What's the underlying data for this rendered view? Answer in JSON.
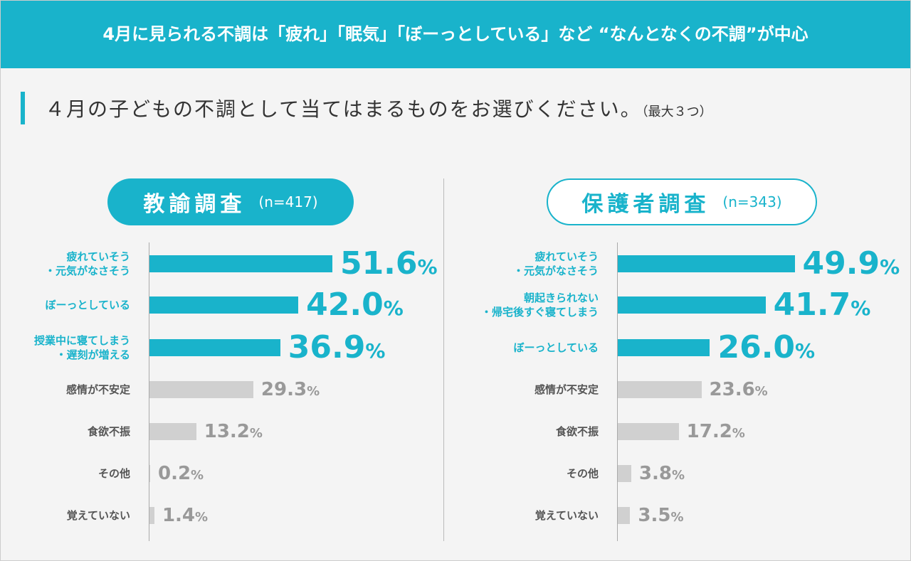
{
  "banner": "4月に見られる不調は「疲れ」「眠気」「ぼーっとしている」など “なんとなくの不調”が中心",
  "question": {
    "text": "４月の子どもの不調として当てはまるものをお選びください。",
    "note": "（最大３つ）"
  },
  "chart_data": [
    {
      "type": "bar",
      "orientation": "horizontal",
      "title": "教諭調査",
      "subtitle": "(n=417)",
      "categories": [
        "疲れていそう\n・元気がなさそう",
        "ぼーっとしている",
        "授業中に寝てしまう\n・遅刻が増える",
        "感情が不安定",
        "食欲不振",
        "その他",
        "覚えていない"
      ],
      "values": [
        51.6,
        42.0,
        36.9,
        29.3,
        13.2,
        0.2,
        1.4
      ],
      "value_labels": [
        "51.6%",
        "42.0%",
        "36.9%",
        "29.3%",
        "13.2%",
        "0.2%",
        "1.4%"
      ],
      "highlighted": [
        true,
        true,
        true,
        false,
        false,
        false,
        false
      ],
      "highlight_color": "#19b3cb",
      "color": "#d0d0d0",
      "xlim": [
        0,
        100
      ],
      "title_style": "filled"
    },
    {
      "type": "bar",
      "orientation": "horizontal",
      "title": "保護者調査",
      "subtitle": "(n=343)",
      "categories": [
        "疲れていそう\n・元気がなさそう",
        "朝起きられない\n・帰宅後すぐ寝てしまう",
        "ぼーっとしている",
        "感情が不安定",
        "食欲不振",
        "その他",
        "覚えていない"
      ],
      "values": [
        49.9,
        41.7,
        26.0,
        23.6,
        17.2,
        3.8,
        3.5
      ],
      "value_labels": [
        "49.9%",
        "41.7%",
        "26.0%",
        "23.6%",
        "17.2%",
        "3.8%",
        "3.5%"
      ],
      "highlighted": [
        true,
        true,
        true,
        false,
        false,
        false,
        false
      ],
      "highlight_color": "#19b3cb",
      "color": "#d0d0d0",
      "xlim": [
        0,
        100
      ],
      "title_style": "outline"
    }
  ]
}
